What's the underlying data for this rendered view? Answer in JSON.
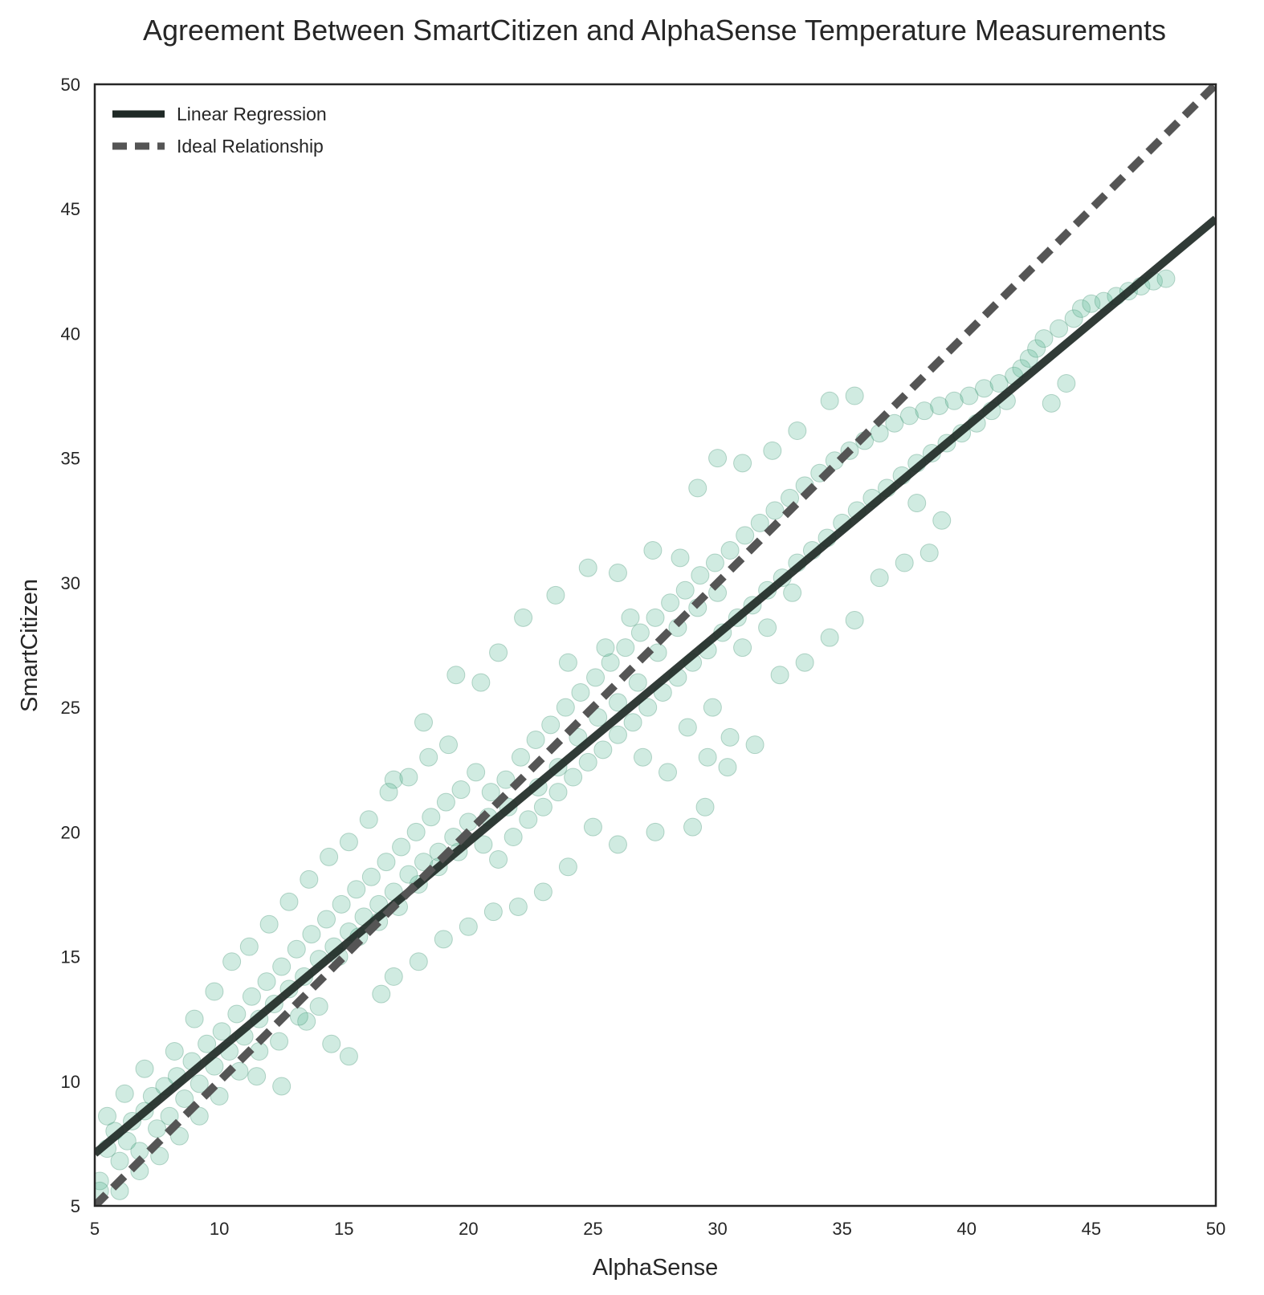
{
  "chart_data": {
    "type": "scatter",
    "title": "Agreement Between SmartCitizen and AlphaSense Temperature Measurements",
    "xlabel": "AlphaSense",
    "ylabel": "SmartCitizen",
    "xlim": [
      5,
      50
    ],
    "ylim": [
      5,
      50
    ],
    "xticks": [
      "5",
      "10",
      "15",
      "20",
      "25",
      "30",
      "35",
      "40",
      "45",
      "50"
    ],
    "yticks": [
      "5",
      "10",
      "15",
      "20",
      "25",
      "30",
      "35",
      "40",
      "45",
      "50"
    ],
    "grid": false,
    "legend_position": "top-left",
    "colors": {
      "points": "#55b794",
      "points_edge": "#3f8f70",
      "regression": "#1f2a26",
      "ideal": "#555555",
      "frame": "#262626"
    },
    "series": [
      {
        "name": "Linear Regression",
        "kind": "line",
        "style": "solid",
        "x": [
          5,
          50
        ],
        "y": [
          7.1,
          44.6
        ]
      },
      {
        "name": "Ideal Relationship",
        "kind": "line",
        "style": "dashed",
        "x": [
          5,
          50
        ],
        "y": [
          5,
          50
        ]
      }
    ],
    "scatter_points": [
      [
        5.2,
        6.0
      ],
      [
        5.5,
        7.3
      ],
      [
        5.8,
        8.0
      ],
      [
        6.0,
        6.8
      ],
      [
        6.3,
        7.6
      ],
      [
        6.5,
        8.4
      ],
      [
        6.8,
        7.2
      ],
      [
        7.0,
        8.8
      ],
      [
        7.3,
        9.4
      ],
      [
        7.5,
        8.1
      ],
      [
        7.8,
        9.8
      ],
      [
        8.0,
        8.6
      ],
      [
        8.3,
        10.2
      ],
      [
        8.6,
        9.3
      ],
      [
        8.9,
        10.8
      ],
      [
        9.2,
        9.9
      ],
      [
        9.5,
        11.5
      ],
      [
        9.8,
        10.6
      ],
      [
        10.1,
        12.0
      ],
      [
        10.4,
        11.2
      ],
      [
        10.7,
        12.7
      ],
      [
        11.0,
        11.8
      ],
      [
        11.3,
        13.4
      ],
      [
        11.6,
        12.5
      ],
      [
        11.9,
        14.0
      ],
      [
        12.2,
        13.1
      ],
      [
        12.5,
        14.6
      ],
      [
        12.8,
        13.7
      ],
      [
        13.1,
        15.3
      ],
      [
        13.4,
        14.2
      ],
      [
        13.7,
        15.9
      ],
      [
        14.0,
        14.9
      ],
      [
        14.3,
        16.5
      ],
      [
        14.6,
        15.4
      ],
      [
        14.9,
        17.1
      ],
      [
        15.2,
        16.0
      ],
      [
        15.5,
        17.7
      ],
      [
        15.8,
        16.6
      ],
      [
        16.1,
        18.2
      ],
      [
        16.4,
        17.1
      ],
      [
        16.7,
        18.8
      ],
      [
        17.0,
        17.6
      ],
      [
        17.3,
        19.4
      ],
      [
        17.6,
        18.3
      ],
      [
        17.9,
        20.0
      ],
      [
        18.2,
        18.8
      ],
      [
        18.5,
        20.6
      ],
      [
        18.8,
        19.2
      ],
      [
        19.1,
        21.2
      ],
      [
        19.4,
        19.8
      ],
      [
        19.7,
        21.7
      ],
      [
        20.0,
        20.4
      ],
      [
        20.3,
        22.4
      ],
      [
        20.6,
        19.5
      ],
      [
        20.9,
        21.6
      ],
      [
        21.2,
        18.9
      ],
      [
        21.5,
        22.1
      ],
      [
        21.8,
        19.8
      ],
      [
        22.1,
        23.0
      ],
      [
        22.4,
        20.5
      ],
      [
        22.7,
        23.7
      ],
      [
        23.0,
        21.0
      ],
      [
        23.3,
        24.3
      ],
      [
        23.6,
        21.6
      ],
      [
        23.9,
        25.0
      ],
      [
        24.2,
        22.2
      ],
      [
        24.5,
        25.6
      ],
      [
        24.8,
        22.8
      ],
      [
        25.1,
        26.2
      ],
      [
        25.4,
        23.3
      ],
      [
        25.7,
        26.8
      ],
      [
        26.0,
        23.9
      ],
      [
        26.3,
        27.4
      ],
      [
        26.6,
        24.4
      ],
      [
        26.9,
        28.0
      ],
      [
        27.2,
        25.0
      ],
      [
        27.5,
        28.6
      ],
      [
        27.8,
        25.6
      ],
      [
        28.1,
        29.2
      ],
      [
        28.4,
        26.2
      ],
      [
        28.7,
        29.7
      ],
      [
        29.0,
        26.8
      ],
      [
        29.3,
        30.3
      ],
      [
        29.6,
        27.3
      ],
      [
        29.9,
        30.8
      ],
      [
        30.2,
        28.0
      ],
      [
        30.5,
        31.3
      ],
      [
        30.8,
        28.6
      ],
      [
        31.1,
        31.9
      ],
      [
        31.4,
        29.1
      ],
      [
        31.7,
        32.4
      ],
      [
        32.0,
        29.7
      ],
      [
        32.3,
        32.9
      ],
      [
        32.6,
        30.2
      ],
      [
        32.9,
        33.4
      ],
      [
        33.2,
        30.8
      ],
      [
        33.5,
        33.9
      ],
      [
        33.8,
        31.3
      ],
      [
        34.1,
        34.4
      ],
      [
        34.4,
        31.8
      ],
      [
        34.7,
        34.9
      ],
      [
        35.0,
        32.4
      ],
      [
        35.3,
        35.3
      ],
      [
        35.6,
        32.9
      ],
      [
        35.9,
        35.7
      ],
      [
        36.2,
        33.4
      ],
      [
        36.5,
        36.0
      ],
      [
        36.8,
        33.8
      ],
      [
        37.1,
        36.4
      ],
      [
        37.4,
        34.3
      ],
      [
        37.7,
        36.7
      ],
      [
        38.0,
        34.8
      ],
      [
        38.3,
        36.9
      ],
      [
        38.6,
        35.2
      ],
      [
        38.9,
        37.1
      ],
      [
        39.2,
        35.6
      ],
      [
        39.5,
        37.3
      ],
      [
        39.8,
        36.0
      ],
      [
        40.1,
        37.5
      ],
      [
        40.4,
        36.4
      ],
      [
        40.7,
        37.8
      ],
      [
        41.0,
        36.9
      ],
      [
        41.3,
        38.0
      ],
      [
        41.6,
        37.3
      ],
      [
        41.9,
        38.3
      ],
      [
        42.2,
        38.6
      ],
      [
        42.5,
        39.0
      ],
      [
        42.8,
        39.4
      ],
      [
        43.1,
        39.8
      ],
      [
        43.4,
        37.2
      ],
      [
        43.7,
        40.2
      ],
      [
        44.0,
        38.0
      ],
      [
        44.3,
        40.6
      ],
      [
        44.6,
        41.0
      ],
      [
        45.0,
        41.2
      ],
      [
        45.5,
        41.3
      ],
      [
        46.0,
        41.5
      ],
      [
        46.5,
        41.7
      ],
      [
        47.0,
        41.9
      ],
      [
        47.5,
        42.1
      ],
      [
        48.0,
        42.2
      ],
      [
        14.5,
        11.5
      ],
      [
        15.2,
        11.0
      ],
      [
        12.5,
        9.8
      ],
      [
        11.5,
        10.2
      ],
      [
        13.5,
        12.4
      ],
      [
        19.5,
        26.3
      ],
      [
        18.2,
        24.4
      ],
      [
        17.0,
        22.1
      ],
      [
        20.5,
        26.0
      ],
      [
        21.2,
        27.2
      ],
      [
        22.2,
        28.6
      ],
      [
        23.5,
        29.5
      ],
      [
        24.8,
        30.6
      ],
      [
        26.0,
        30.4
      ],
      [
        27.4,
        31.3
      ],
      [
        28.5,
        31.0
      ],
      [
        29.2,
        33.8
      ],
      [
        30.0,
        35.0
      ],
      [
        31.0,
        34.8
      ],
      [
        32.2,
        35.3
      ],
      [
        33.2,
        36.1
      ],
      [
        34.5,
        37.3
      ],
      [
        35.5,
        37.5
      ],
      [
        29.8,
        25.0
      ],
      [
        30.5,
        23.8
      ],
      [
        29.5,
        21.0
      ],
      [
        29.0,
        20.2
      ],
      [
        27.5,
        20.0
      ],
      [
        26.0,
        19.5
      ],
      [
        25.0,
        20.2
      ],
      [
        24.0,
        18.6
      ],
      [
        23.0,
        17.6
      ],
      [
        22.0,
        17.0
      ],
      [
        21.0,
        16.8
      ],
      [
        20.0,
        16.2
      ],
      [
        19.0,
        15.7
      ],
      [
        18.0,
        14.8
      ],
      [
        17.0,
        14.2
      ],
      [
        16.5,
        13.5
      ],
      [
        31.5,
        23.5
      ],
      [
        32.5,
        26.3
      ],
      [
        33.5,
        26.8
      ],
      [
        34.5,
        27.8
      ],
      [
        35.5,
        28.5
      ],
      [
        36.5,
        30.2
      ],
      [
        37.5,
        30.8
      ],
      [
        38.5,
        31.2
      ],
      [
        39.0,
        32.5
      ],
      [
        38.0,
        33.2
      ],
      [
        8.2,
        11.2
      ],
      [
        9.0,
        12.5
      ],
      [
        9.8,
        13.6
      ],
      [
        10.5,
        14.8
      ],
      [
        11.2,
        15.4
      ],
      [
        12.0,
        16.3
      ],
      [
        12.8,
        17.2
      ],
      [
        13.6,
        18.1
      ],
      [
        14.4,
        19.0
      ],
      [
        15.2,
        19.6
      ],
      [
        16.0,
        20.5
      ],
      [
        16.8,
        21.6
      ],
      [
        17.6,
        22.2
      ],
      [
        18.4,
        23.0
      ],
      [
        19.2,
        23.5
      ],
      [
        6.2,
        9.5
      ],
      [
        7.0,
        10.5
      ],
      [
        5.5,
        8.6
      ],
      [
        5.2,
        5.6
      ],
      [
        6.0,
        5.6
      ],
      [
        6.8,
        6.4
      ],
      [
        7.6,
        7.0
      ],
      [
        8.4,
        7.8
      ],
      [
        9.2,
        8.6
      ],
      [
        10.0,
        9.4
      ],
      [
        10.8,
        10.4
      ],
      [
        11.6,
        11.2
      ],
      [
        12.4,
        11.6
      ],
      [
        13.2,
        12.6
      ],
      [
        14.0,
        13.0
      ],
      [
        22.8,
        21.8
      ],
      [
        23.6,
        22.6
      ],
      [
        24.4,
        23.8
      ],
      [
        25.2,
        24.6
      ],
      [
        26.0,
        25.2
      ],
      [
        26.8,
        26.0
      ],
      [
        27.6,
        27.2
      ],
      [
        28.4,
        28.2
      ],
      [
        29.2,
        29.0
      ],
      [
        30.0,
        29.6
      ],
      [
        20.8,
        20.6
      ],
      [
        21.6,
        21.0
      ],
      [
        19.6,
        19.2
      ],
      [
        18.8,
        18.6
      ],
      [
        18.0,
        17.9
      ],
      [
        17.2,
        17.0
      ],
      [
        16.4,
        16.4
      ],
      [
        15.6,
        15.8
      ],
      [
        14.8,
        15.0
      ],
      [
        24.0,
        26.8
      ],
      [
        25.5,
        27.4
      ],
      [
        26.5,
        28.6
      ],
      [
        27.0,
        23.0
      ],
      [
        28.0,
        22.4
      ],
      [
        28.8,
        24.2
      ],
      [
        29.6,
        23.0
      ],
      [
        30.4,
        22.6
      ],
      [
        31.0,
        27.4
      ],
      [
        32.0,
        28.2
      ],
      [
        33.0,
        29.6
      ]
    ]
  }
}
